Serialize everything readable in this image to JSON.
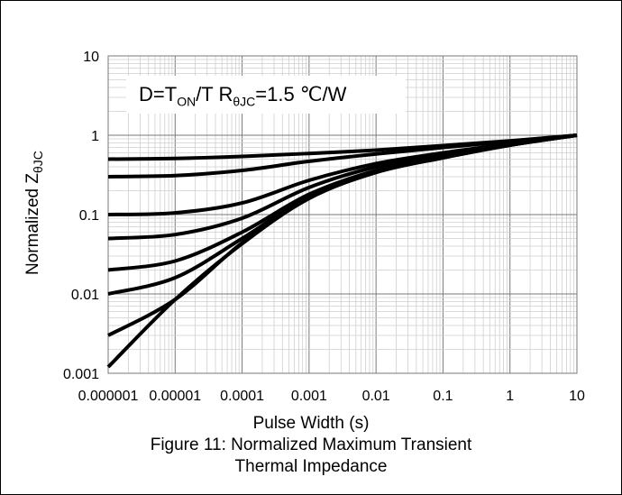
{
  "chart_data": {
    "type": "line",
    "x_scale": "log",
    "y_scale": "log",
    "xlim": [
      1e-06,
      10
    ],
    "ylim": [
      0.001,
      10
    ],
    "x_tick_labels": [
      "0.000001",
      "0.00001",
      "0.0001",
      "0.001",
      "0.01",
      "0.1",
      "1",
      "10"
    ],
    "y_tick_labels": [
      "10",
      "1",
      "0.1",
      "0.01",
      "0.001"
    ],
    "xlabel": "Pulse Width (s)",
    "ylabel_main": "Normalized Z",
    "ylabel_sub": "θJC",
    "annotation": {
      "part1": "D=T",
      "sub1": "ON",
      "part2": "/T  R",
      "sub2": "θJC",
      "part3": "=1.5 ℃/W"
    },
    "grid": "major and minor (log decades)",
    "line_color": "#000000",
    "x": [
      1e-06,
      1e-05,
      0.0001,
      0.001,
      0.01,
      0.1,
      1,
      10
    ],
    "series": [
      {
        "values": [
          0.5,
          0.51,
          0.54,
          0.59,
          0.65,
          0.74,
          0.85,
          1.0
        ]
      },
      {
        "values": [
          0.3,
          0.31,
          0.36,
          0.47,
          0.58,
          0.7,
          0.84,
          1.0
        ]
      },
      {
        "values": [
          0.1,
          0.105,
          0.14,
          0.27,
          0.44,
          0.6,
          0.78,
          1.0
        ]
      },
      {
        "values": [
          0.05,
          0.056,
          0.09,
          0.22,
          0.4,
          0.57,
          0.77,
          1.0
        ]
      },
      {
        "values": [
          0.02,
          0.026,
          0.06,
          0.18,
          0.36,
          0.54,
          0.76,
          1.0
        ]
      },
      {
        "values": [
          0.01,
          0.016,
          0.05,
          0.17,
          0.35,
          0.53,
          0.75,
          1.0
        ]
      },
      {
        "values": [
          0.003,
          0.0085,
          0.044,
          0.16,
          0.34,
          0.52,
          0.75,
          1.0
        ]
      },
      {
        "values": [
          0.0012,
          0.0085,
          0.043,
          0.16,
          0.34,
          0.52,
          0.75,
          1.0
        ]
      }
    ]
  },
  "caption": {
    "line1": "Figure 11: Normalized Maximum Transient",
    "line2": "Thermal Impedance"
  }
}
